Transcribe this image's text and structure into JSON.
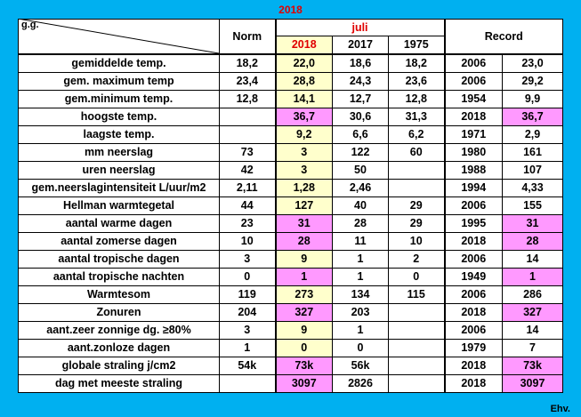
{
  "title": "2018",
  "header": {
    "gg": "g.g.",
    "norm": "Norm",
    "month": "juli",
    "years": [
      "2018",
      "2017",
      "1975"
    ],
    "record": "Record"
  },
  "rows": [
    {
      "label": "gemiddelde temp.",
      "norm": "18,2",
      "y2018": "22,0",
      "y2017": "18,6",
      "y1975": "18,2",
      "rec_year": "2006",
      "rec_val": "23,0",
      "pink2018": false,
      "pinkRec": false
    },
    {
      "label": "gem. maximum temp",
      "norm": "23,4",
      "y2018": "28,8",
      "y2017": "24,3",
      "y1975": "23,6",
      "rec_year": "2006",
      "rec_val": "29,2",
      "pink2018": false,
      "pinkRec": false
    },
    {
      "label": "gem.minimum temp.",
      "norm": "12,8",
      "y2018": "14,1",
      "y2017": "12,7",
      "y1975": "12,8",
      "rec_year": "1954",
      "rec_val": "9,9",
      "pink2018": false,
      "pinkRec": false
    },
    {
      "label": "hoogste temp.",
      "norm": "",
      "y2018": "36,7",
      "y2017": "30,6",
      "y1975": "31,3",
      "rec_year": "2018",
      "rec_val": "36,7",
      "pink2018": true,
      "pinkRec": true
    },
    {
      "label": "laagste temp.",
      "norm": "",
      "y2018": "9,2",
      "y2017": "6,6",
      "y1975": "6,2",
      "rec_year": "1971",
      "rec_val": "2,9",
      "pink2018": false,
      "pinkRec": false
    },
    {
      "label": "mm neerslag",
      "norm": "73",
      "y2018": "3",
      "y2017": "122",
      "y1975": "60",
      "rec_year": "1980",
      "rec_val": "161",
      "pink2018": false,
      "pinkRec": false
    },
    {
      "label": "uren neerslag",
      "norm": "42",
      "y2018": "3",
      "y2017": "50",
      "y1975": "",
      "rec_year": "1988",
      "rec_val": "107",
      "pink2018": false,
      "pinkRec": false
    },
    {
      "label": "gem.neerslagintensiteit L/uur/m2",
      "norm": "2,11",
      "y2018": "1,28",
      "y2017": "2,46",
      "y1975": "",
      "rec_year": "1994",
      "rec_val": "4,33",
      "pink2018": false,
      "pinkRec": false
    },
    {
      "label": "Hellman warmtegetal",
      "norm": "44",
      "y2018": "127",
      "y2017": "40",
      "y1975": "29",
      "rec_year": "2006",
      "rec_val": "155",
      "pink2018": false,
      "pinkRec": false
    },
    {
      "label": "aantal warme dagen",
      "norm": "23",
      "y2018": "31",
      "y2017": "28",
      "y1975": "29",
      "rec_year": "1995",
      "rec_val": "31",
      "pink2018": true,
      "pinkRec": true
    },
    {
      "label": "aantal zomerse dagen",
      "norm": "10",
      "y2018": "28",
      "y2017": "11",
      "y1975": "10",
      "rec_year": "2018",
      "rec_val": "28",
      "pink2018": true,
      "pinkRec": true
    },
    {
      "label": "aantal tropische dagen",
      "norm": "3",
      "y2018": "9",
      "y2017": "1",
      "y1975": "2",
      "rec_year": "2006",
      "rec_val": "14",
      "pink2018": false,
      "pinkRec": false
    },
    {
      "label": "aantal tropische nachten",
      "norm": "0",
      "y2018": "1",
      "y2017": "1",
      "y1975": "0",
      "rec_year": "1949",
      "rec_val": "1",
      "pink2018": true,
      "pinkRec": true
    },
    {
      "label": "Warmtesom",
      "norm": "119",
      "y2018": "273",
      "y2017": "134",
      "y1975": "115",
      "rec_year": "2006",
      "rec_val": "286",
      "pink2018": false,
      "pinkRec": false
    },
    {
      "label": "Zonuren",
      "norm": "204",
      "y2018": "327",
      "y2017": "203",
      "y1975": "",
      "rec_year": "2018",
      "rec_val": "327",
      "pink2018": true,
      "pinkRec": true
    },
    {
      "label": "aant.zeer zonnige dg. ≥80%",
      "norm": "3",
      "y2018": "9",
      "y2017": "1",
      "y1975": "",
      "rec_year": "2006",
      "rec_val": "14",
      "pink2018": false,
      "pinkRec": false
    },
    {
      "label": "aant.zonloze dagen",
      "norm": "1",
      "y2018": "0",
      "y2017": "0",
      "y1975": "",
      "rec_year": "1979",
      "rec_val": "7",
      "pink2018": false,
      "pinkRec": false
    },
    {
      "label": "globale straling j/cm2",
      "norm": "54k",
      "y2018": "73k",
      "y2017": "56k",
      "y1975": "",
      "rec_year": "2018",
      "rec_val": "73k",
      "pink2018": true,
      "pinkRec": true
    },
    {
      "label": "dag met meeste straling",
      "norm": "",
      "y2018": "3097",
      "y2017": "2826",
      "y1975": "",
      "rec_year": "2018",
      "rec_val": "3097",
      "pink2018": true,
      "pinkRec": true
    }
  ],
  "footer": "Ehv.",
  "colors": {
    "background": "#00b0f0",
    "highlight": "#ff99ff",
    "year_col": "#ffffcc",
    "accent": "#e00000"
  }
}
